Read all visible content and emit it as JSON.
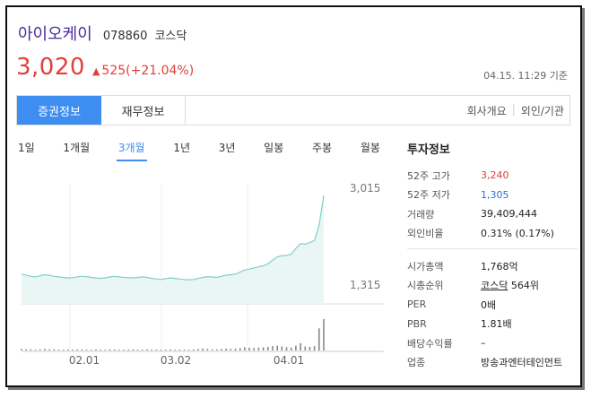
{
  "stock": {
    "name": "아이오케이",
    "code": "078860",
    "market": "코스닥",
    "price": "3,020",
    "change": "525(+21.04%)",
    "timestamp": "04.15. 11:29 기준"
  },
  "tabs": {
    "securities": "증권정보",
    "financial": "재무정보",
    "company": "회사개요",
    "foreign": "외인/기관"
  },
  "periods": [
    "1일",
    "1개월",
    "3개월",
    "1년",
    "3년",
    "일봉",
    "주봉",
    "월봉"
  ],
  "active_period": "3개월",
  "colors": {
    "up": "#e0413a",
    "down": "#2f6fc9",
    "accent": "#3d8ef0",
    "line": "#7fd0c8"
  },
  "chart_data": {
    "type": "line",
    "y_high_label": "3,015",
    "y_low_label": "1,315",
    "x_ticks": [
      "02.01",
      "03.02",
      "04.01"
    ],
    "price": [
      1520,
      1500,
      1480,
      1470,
      1490,
      1510,
      1500,
      1480,
      1470,
      1460,
      1450,
      1455,
      1470,
      1480,
      1475,
      1460,
      1450,
      1440,
      1450,
      1470,
      1480,
      1470,
      1460,
      1455,
      1450,
      1460,
      1470,
      1460,
      1440,
      1430,
      1420,
      1435,
      1450,
      1440,
      1430,
      1420,
      1415,
      1420,
      1440,
      1460,
      1475,
      1470,
      1460,
      1480,
      1500,
      1510,
      1520,
      1560,
      1600,
      1620,
      1640,
      1660,
      1680,
      1720,
      1790,
      1850,
      1870,
      1880,
      1900,
      2010,
      2100,
      2090,
      2120,
      2160,
      2450,
      3015
    ],
    "volume": [
      0.04,
      0.03,
      0.03,
      0.02,
      0.03,
      0.04,
      0.03,
      0.03,
      0.02,
      0.02,
      0.03,
      0.02,
      0.03,
      0.03,
      0.02,
      0.02,
      0.03,
      0.02,
      0.02,
      0.03,
      0.03,
      0.02,
      0.02,
      0.02,
      0.03,
      0.02,
      0.02,
      0.03,
      0.02,
      0.02,
      0.02,
      0.02,
      0.03,
      0.02,
      0.02,
      0.02,
      0.02,
      0.03,
      0.04,
      0.05,
      0.04,
      0.03,
      0.03,
      0.04,
      0.05,
      0.04,
      0.05,
      0.06,
      0.08,
      0.07,
      0.06,
      0.07,
      0.08,
      0.09,
      0.11,
      0.12,
      0.1,
      0.08,
      0.07,
      0.12,
      0.18,
      0.1,
      0.09,
      0.11,
      0.55,
      0.78
    ],
    "ylim": [
      1315,
      3015
    ]
  },
  "invest": {
    "title": "투자정보",
    "high52_label": "52주 고가",
    "high52": "3,240",
    "low52_label": "52주 저가",
    "low52": "1,305",
    "volume_label": "거래량",
    "volume": "39,409,444",
    "foreign_label": "외인비율",
    "foreign": "0.31% (0.17%)",
    "mcap_label": "시가총액",
    "mcap": "1,768억",
    "rank_label": "시총순위",
    "rank_market": "코스닥",
    "rank_value": "564위",
    "per_label": "PER",
    "per": "0배",
    "pbr_label": "PBR",
    "pbr": "1.81배",
    "div_label": "배당수익률",
    "div": "–",
    "industry_label": "업종",
    "industry": "방송과엔터테인먼트"
  }
}
